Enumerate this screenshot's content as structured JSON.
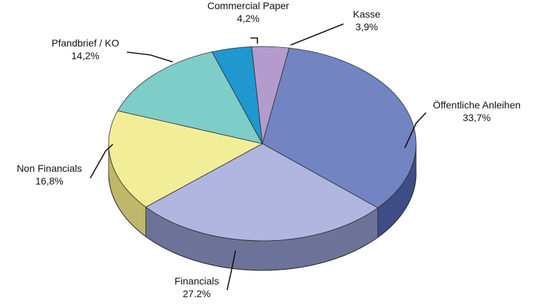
{
  "chart_data": {
    "type": "pie",
    "title": "",
    "slices": [
      {
        "label": "Kasse",
        "value": 3.9,
        "value_label": "3,9%",
        "color": "#b39ccd",
        "side_color": "#7e6a99"
      },
      {
        "label": "Öffentliche Anleihen",
        "value": 33.7,
        "value_label": "33,7%",
        "color": "#7384c2",
        "side_color": "#3e4d85"
      },
      {
        "label": "Financials",
        "value": 27.2,
        "value_label": "27.2%",
        "color": "#b0b6e0",
        "side_color": "#6d7398"
      },
      {
        "label": "Non Financials",
        "value": 16.8,
        "value_label": "16,8%",
        "color": "#f2ee98",
        "side_color": "#bfb86a"
      },
      {
        "label": "Pfandbrief / KO",
        "value": 14.2,
        "value_label": "14,2%",
        "color": "#7ecdc8",
        "side_color": "#4f9893"
      },
      {
        "label": "Commercial Paper",
        "value": 4.2,
        "value_label": "4,2%",
        "color": "#1f98cf",
        "side_color": "#116a94"
      }
    ],
    "style": "3d-pie",
    "legend": "none"
  }
}
